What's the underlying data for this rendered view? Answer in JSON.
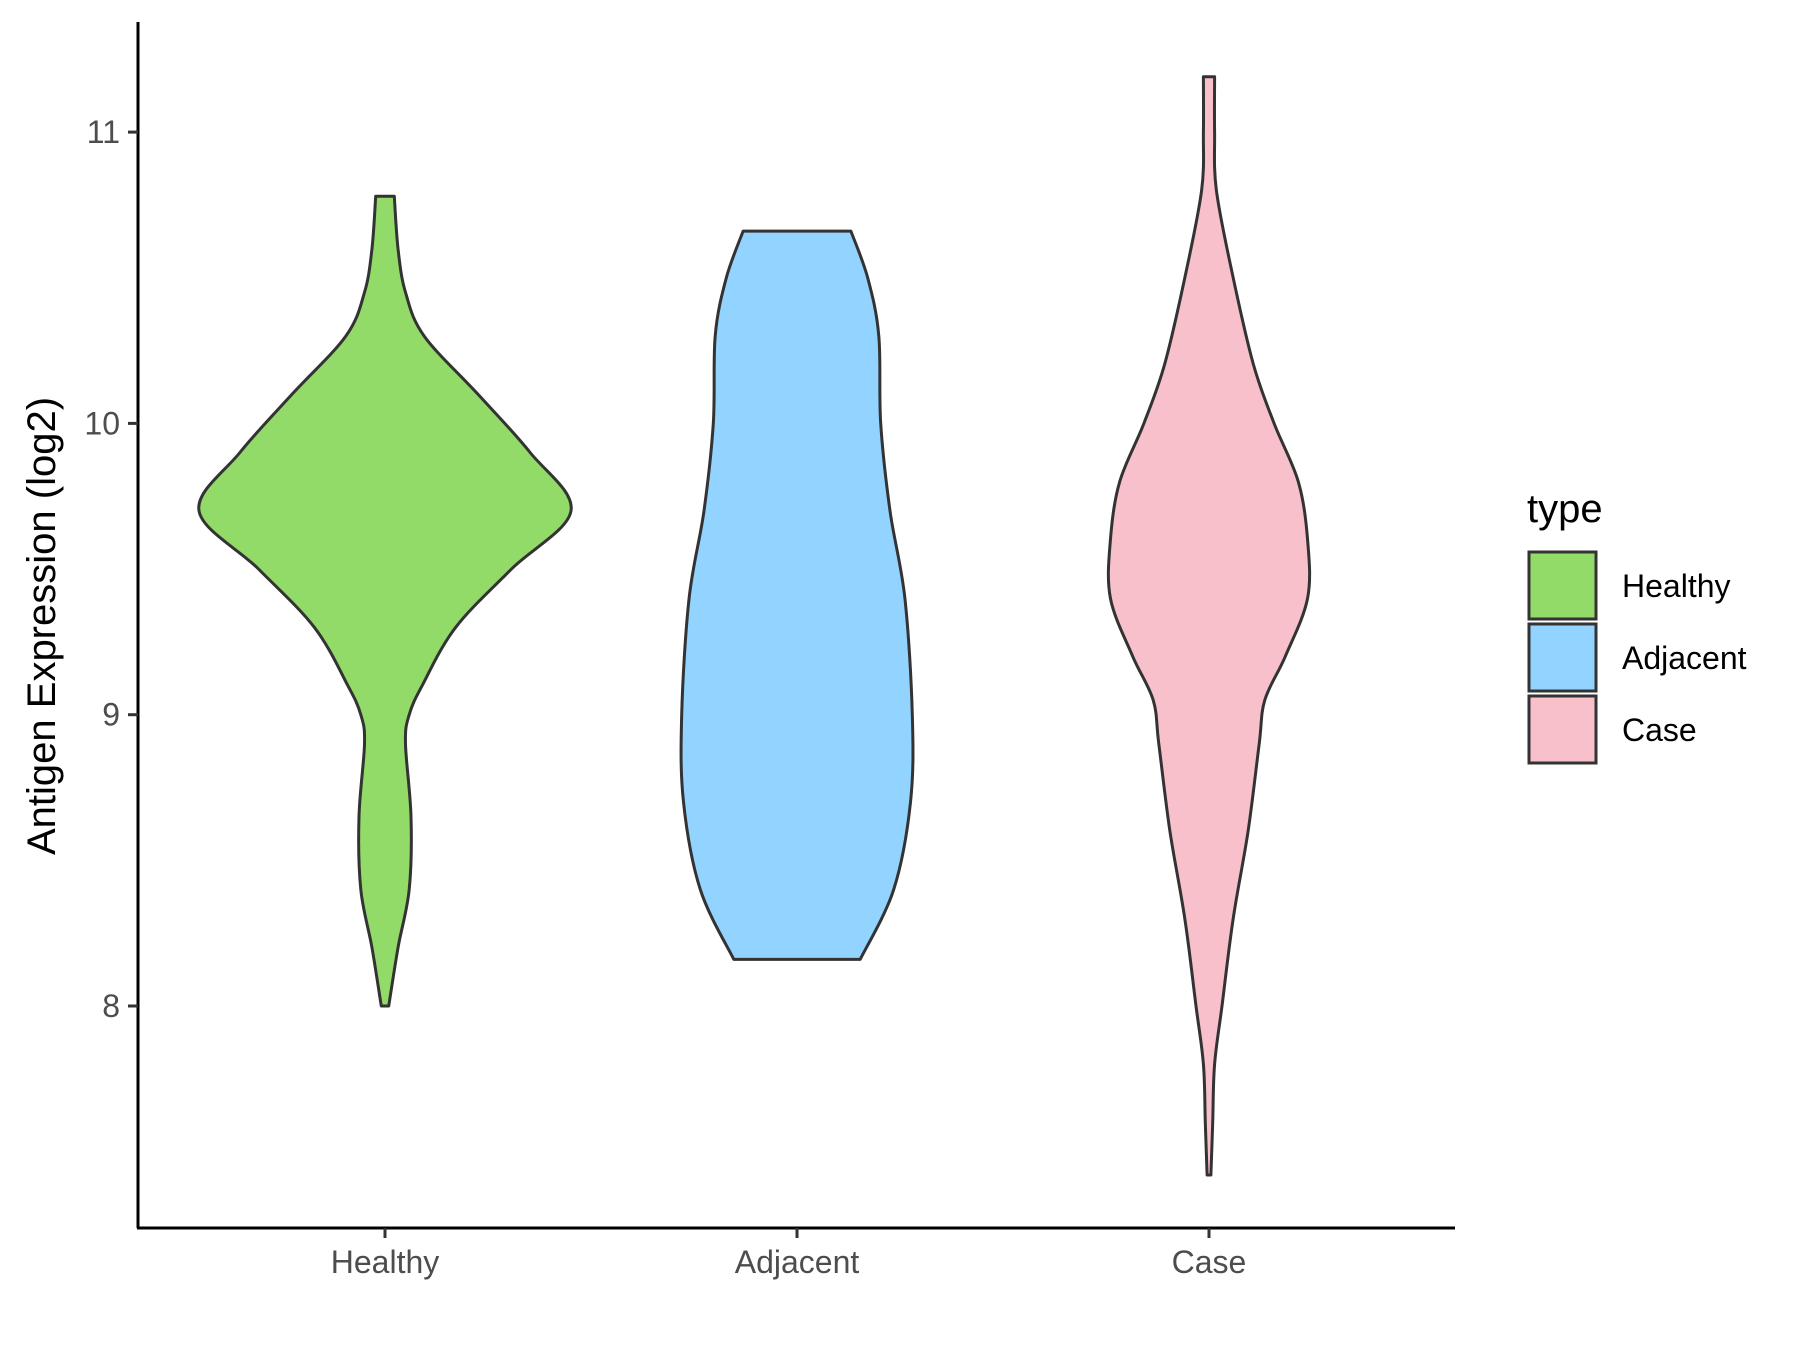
{
  "chart_data": {
    "type": "violin",
    "ylabel": "Antigen Expression (log2)",
    "xlabel": "",
    "ylim": [
      7.3,
      11.4
    ],
    "yticks": [
      8,
      9,
      10,
      11
    ],
    "categories": [
      "Healthy",
      "Adjacent",
      "Case"
    ],
    "grid": false,
    "legend": {
      "title": "type",
      "position": "right",
      "entries": [
        {
          "label": "Healthy",
          "color": "#93DB69"
        },
        {
          "label": "Adjacent",
          "color": "#92D3FF"
        },
        {
          "label": "Case",
          "color": "#F7C0CB"
        }
      ]
    },
    "series": [
      {
        "name": "Healthy",
        "color": "#93DB69",
        "density": [
          [
            8.0,
            0.02
          ],
          [
            8.2,
            0.07
          ],
          [
            8.4,
            0.13
          ],
          [
            8.65,
            0.14
          ],
          [
            8.9,
            0.11
          ],
          [
            9.0,
            0.13
          ],
          [
            9.1,
            0.2
          ],
          [
            9.3,
            0.38
          ],
          [
            9.5,
            0.68
          ],
          [
            9.7,
            1.0
          ],
          [
            9.9,
            0.78
          ],
          [
            10.1,
            0.5
          ],
          [
            10.3,
            0.21
          ],
          [
            10.45,
            0.11
          ],
          [
            10.6,
            0.07
          ],
          [
            10.78,
            0.05
          ]
        ]
      },
      {
        "name": "Adjacent",
        "color": "#92D3FF",
        "density": [
          [
            8.16,
            0.34
          ],
          [
            8.4,
            0.52
          ],
          [
            8.7,
            0.61
          ],
          [
            9.0,
            0.62
          ],
          [
            9.4,
            0.58
          ],
          [
            9.7,
            0.5
          ],
          [
            10.0,
            0.45
          ],
          [
            10.3,
            0.44
          ],
          [
            10.5,
            0.38
          ],
          [
            10.66,
            0.29
          ]
        ]
      },
      {
        "name": "Case",
        "color": "#F7C0CB",
        "density": [
          [
            7.42,
            0.01
          ],
          [
            7.6,
            0.02
          ],
          [
            7.8,
            0.03
          ],
          [
            8.0,
            0.07
          ],
          [
            8.3,
            0.13
          ],
          [
            8.6,
            0.21
          ],
          [
            8.9,
            0.27
          ],
          [
            9.05,
            0.3
          ],
          [
            9.2,
            0.41
          ],
          [
            9.4,
            0.53
          ],
          [
            9.6,
            0.53
          ],
          [
            9.8,
            0.48
          ],
          [
            10.0,
            0.35
          ],
          [
            10.2,
            0.24
          ],
          [
            10.5,
            0.13
          ],
          [
            10.8,
            0.04
          ],
          [
            11.0,
            0.03
          ],
          [
            11.19,
            0.03
          ]
        ]
      }
    ]
  }
}
